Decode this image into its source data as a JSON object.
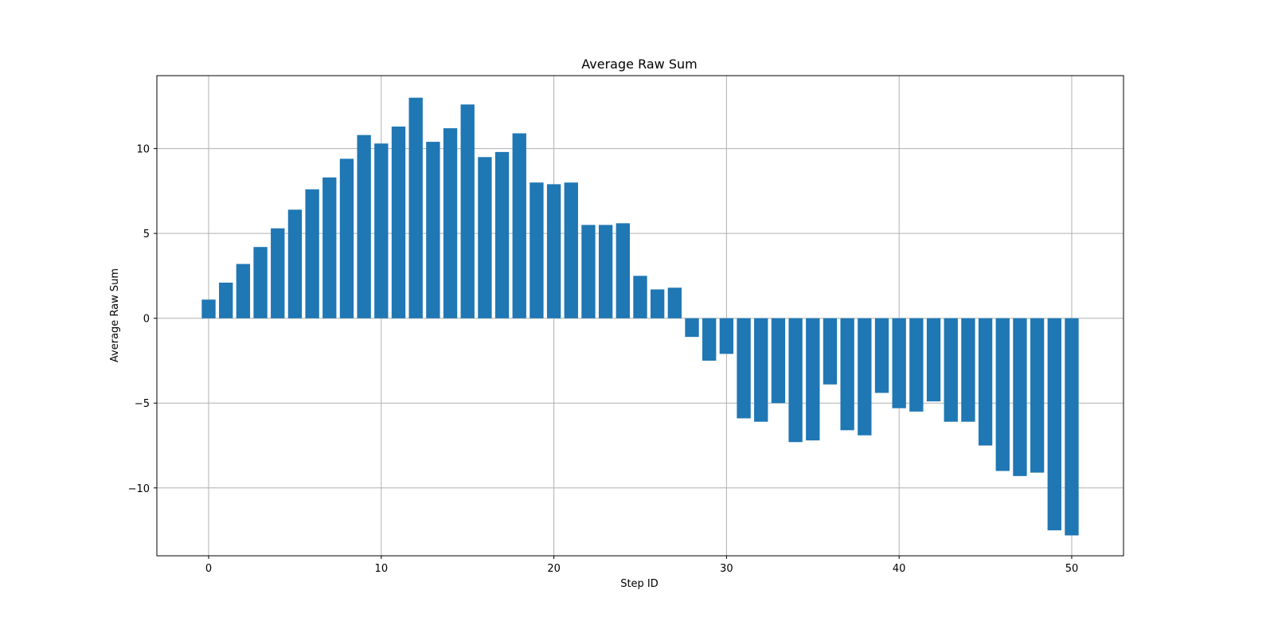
{
  "chart_data": {
    "type": "bar",
    "title": "Average Raw Sum",
    "xlabel": "Step ID",
    "ylabel": "Average Raw Sum",
    "xlim": [
      -3,
      53
    ],
    "ylim": [
      -14,
      14.3
    ],
    "xticks": [
      0,
      10,
      20,
      30,
      40,
      50
    ],
    "yticks": [
      -10,
      -5,
      0,
      5,
      10
    ],
    "grid": true,
    "bar_color": "#1f77b4",
    "x": [
      0,
      1,
      2,
      3,
      4,
      5,
      6,
      7,
      8,
      9,
      10,
      11,
      12,
      13,
      14,
      15,
      16,
      17,
      18,
      19,
      20,
      21,
      22,
      23,
      24,
      25,
      26,
      27,
      28,
      29,
      30,
      31,
      32,
      33,
      34,
      35,
      36,
      37,
      38,
      39,
      40,
      41,
      42,
      43,
      44,
      45,
      46,
      47,
      48,
      49,
      50
    ],
    "values": [
      1.1,
      2.1,
      3.2,
      4.2,
      5.3,
      6.4,
      7.6,
      8.3,
      9.4,
      10.8,
      10.3,
      11.3,
      13.0,
      10.4,
      11.2,
      12.6,
      9.5,
      9.8,
      10.9,
      8.0,
      7.9,
      8.0,
      5.5,
      5.5,
      5.6,
      2.5,
      1.7,
      1.8,
      -1.1,
      -2.5,
      -2.1,
      -5.9,
      -6.1,
      -5.0,
      -7.3,
      -7.2,
      -3.9,
      -6.6,
      -6.9,
      -4.4,
      -5.3,
      -5.5,
      -4.9,
      -6.1,
      -6.1,
      -7.5,
      -9.0,
      -9.3,
      -9.1,
      -12.5,
      -12.8
    ]
  }
}
